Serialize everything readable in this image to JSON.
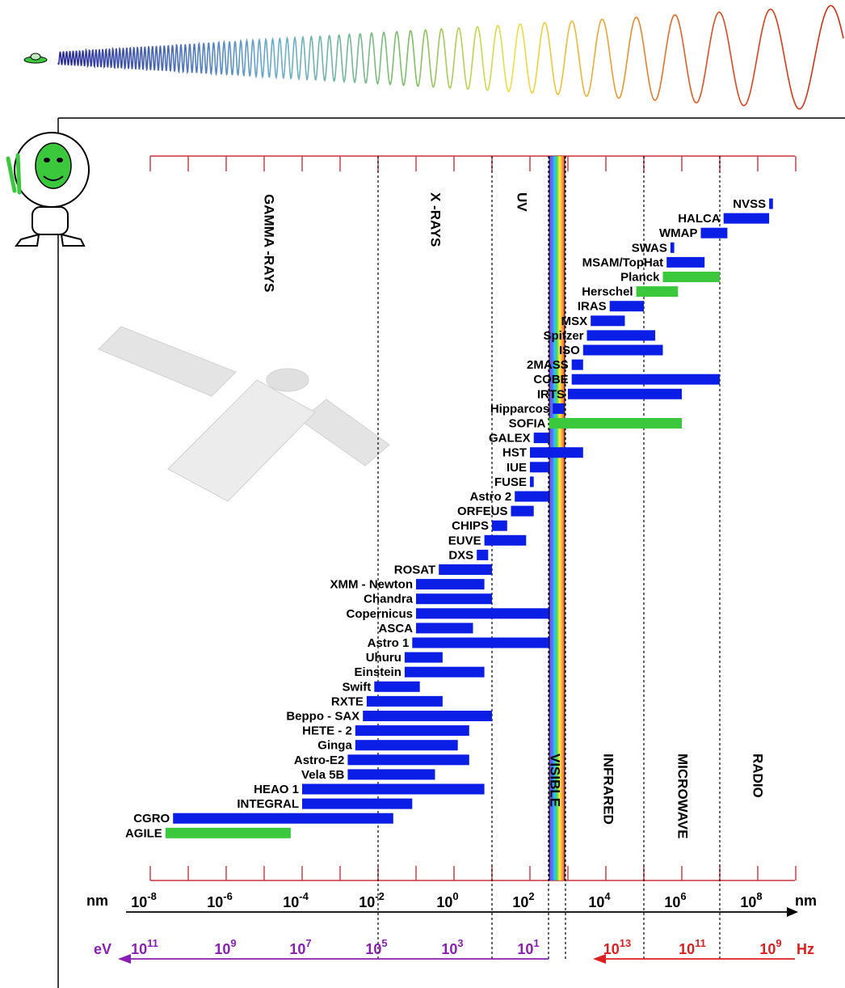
{
  "chart_data": {
    "type": "bar",
    "subtype": "range-gantt",
    "x_scale": "log10",
    "xlim_nm": [
      -8.8,
      9.6
    ],
    "regions": [
      "GAMMA -RAYS",
      "X -RAYS",
      "UV",
      "VISIBLE",
      "INFRARED",
      "MICROWAVE",
      "RADIO"
    ],
    "boundaries_log_nm": [
      -2,
      1,
      2.6,
      3,
      5,
      7
    ],
    "missions": [
      {
        "name": "NVSS",
        "from": 8.3,
        "to": 8.4,
        "color": "blue"
      },
      {
        "name": "HALCA",
        "from": 7.1,
        "to": 8.3,
        "color": "blue"
      },
      {
        "name": "WMAP",
        "from": 6.5,
        "to": 7.2,
        "color": "blue"
      },
      {
        "name": "SWAS",
        "from": 5.7,
        "to": 5.8,
        "color": "blue"
      },
      {
        "name": "MSAM/TopHat",
        "from": 5.6,
        "to": 6.6,
        "color": "blue"
      },
      {
        "name": "Planck",
        "from": 5.5,
        "to": 7.0,
        "color": "green"
      },
      {
        "name": "Herschel",
        "from": 4.8,
        "to": 5.9,
        "color": "green"
      },
      {
        "name": "IRAS",
        "from": 4.1,
        "to": 5.0,
        "color": "blue"
      },
      {
        "name": "MSX",
        "from": 3.6,
        "to": 4.5,
        "color": "blue"
      },
      {
        "name": "Spitzer",
        "from": 3.5,
        "to": 5.3,
        "color": "blue"
      },
      {
        "name": "ISO",
        "from": 3.4,
        "to": 5.5,
        "color": "blue"
      },
      {
        "name": "2MASS",
        "from": 3.1,
        "to": 3.4,
        "color": "blue"
      },
      {
        "name": "COBE",
        "from": 3.1,
        "to": 7.0,
        "color": "blue"
      },
      {
        "name": "IRTS",
        "from": 3.0,
        "to": 6.0,
        "color": "blue"
      },
      {
        "name": "Hipparcos",
        "from": 2.6,
        "to": 2.9,
        "color": "blue"
      },
      {
        "name": "SOFIA",
        "from": 2.5,
        "to": 6.0,
        "color": "green"
      },
      {
        "name": "GALEX",
        "from": 2.1,
        "to": 2.5,
        "color": "blue"
      },
      {
        "name": "HST",
        "from": 2.0,
        "to": 3.4,
        "color": "blue"
      },
      {
        "name": "IUE",
        "from": 2.0,
        "to": 2.5,
        "color": "blue"
      },
      {
        "name": "FUSE",
        "from": 2.0,
        "to": 2.1,
        "color": "blue"
      },
      {
        "name": "Astro  2",
        "from": 1.6,
        "to": 2.5,
        "color": "blue"
      },
      {
        "name": "ORFEUS",
        "from": 1.5,
        "to": 2.1,
        "color": "blue"
      },
      {
        "name": "CHIPS",
        "from": 1.0,
        "to": 1.4,
        "color": "blue"
      },
      {
        "name": "EUVE",
        "from": 0.8,
        "to": 1.9,
        "color": "blue"
      },
      {
        "name": "DXS",
        "from": 0.6,
        "to": 0.9,
        "color": "blue"
      },
      {
        "name": "ROSAT",
        "from": -0.4,
        "to": 1.0,
        "color": "blue"
      },
      {
        "name": "XMM - Newton",
        "from": -1.0,
        "to": 0.8,
        "color": "blue"
      },
      {
        "name": "Chandra",
        "from": -1.0,
        "to": 1.0,
        "color": "blue"
      },
      {
        "name": "Copernicus",
        "from": -1.0,
        "to": 2.5,
        "color": "blue"
      },
      {
        "name": "ASCA",
        "from": -1.0,
        "to": 0.5,
        "color": "blue"
      },
      {
        "name": "Astro  1",
        "from": -1.1,
        "to": 2.5,
        "color": "blue"
      },
      {
        "name": "Uhuru",
        "from": -1.3,
        "to": -0.3,
        "color": "blue"
      },
      {
        "name": "Einstein",
        "from": -1.3,
        "to": 0.8,
        "color": "blue"
      },
      {
        "name": "Swift",
        "from": -2.1,
        "to": -0.9,
        "color": "blue"
      },
      {
        "name": "RXTE",
        "from": -2.3,
        "to": -0.3,
        "color": "blue"
      },
      {
        "name": "Beppo - SAX",
        "from": -2.4,
        "to": 1.0,
        "color": "blue"
      },
      {
        "name": "HETE - 2",
        "from": -2.6,
        "to": 0.4,
        "color": "blue"
      },
      {
        "name": "Ginga",
        "from": -2.6,
        "to": 0.1,
        "color": "blue"
      },
      {
        "name": "Astro-E2",
        "from": -2.8,
        "to": 0.4,
        "color": "blue"
      },
      {
        "name": "Vela  5B",
        "from": -2.8,
        "to": -0.5,
        "color": "blue"
      },
      {
        "name": "HEAO  1",
        "from": -4.0,
        "to": 0.8,
        "color": "blue"
      },
      {
        "name": "INTEGRAL",
        "from": -4.0,
        "to": -1.1,
        "color": "blue"
      },
      {
        "name": "CGRO",
        "from": -7.4,
        "to": -1.6,
        "color": "blue"
      },
      {
        "name": "AGILE",
        "from": -7.6,
        "to": -4.3,
        "color": "green"
      }
    ],
    "nm_axis": {
      "unit": "nm",
      "ticks": [
        -8,
        -6,
        -4,
        -2,
        0,
        2,
        4,
        6,
        8
      ]
    },
    "ev_axis": {
      "unit": "eV",
      "ticks": [
        11,
        9,
        7,
        5,
        3,
        1
      ]
    },
    "hz_axis": {
      "unit": "Hz",
      "ticks": [
        13,
        11,
        9
      ]
    },
    "colors": {
      "blue": "#0a1ee6",
      "green": "#3cc83c",
      "axis_red": "#c8323c",
      "ev_purple": "#8a1eb4",
      "hz_red": "#dc1e1e"
    }
  }
}
